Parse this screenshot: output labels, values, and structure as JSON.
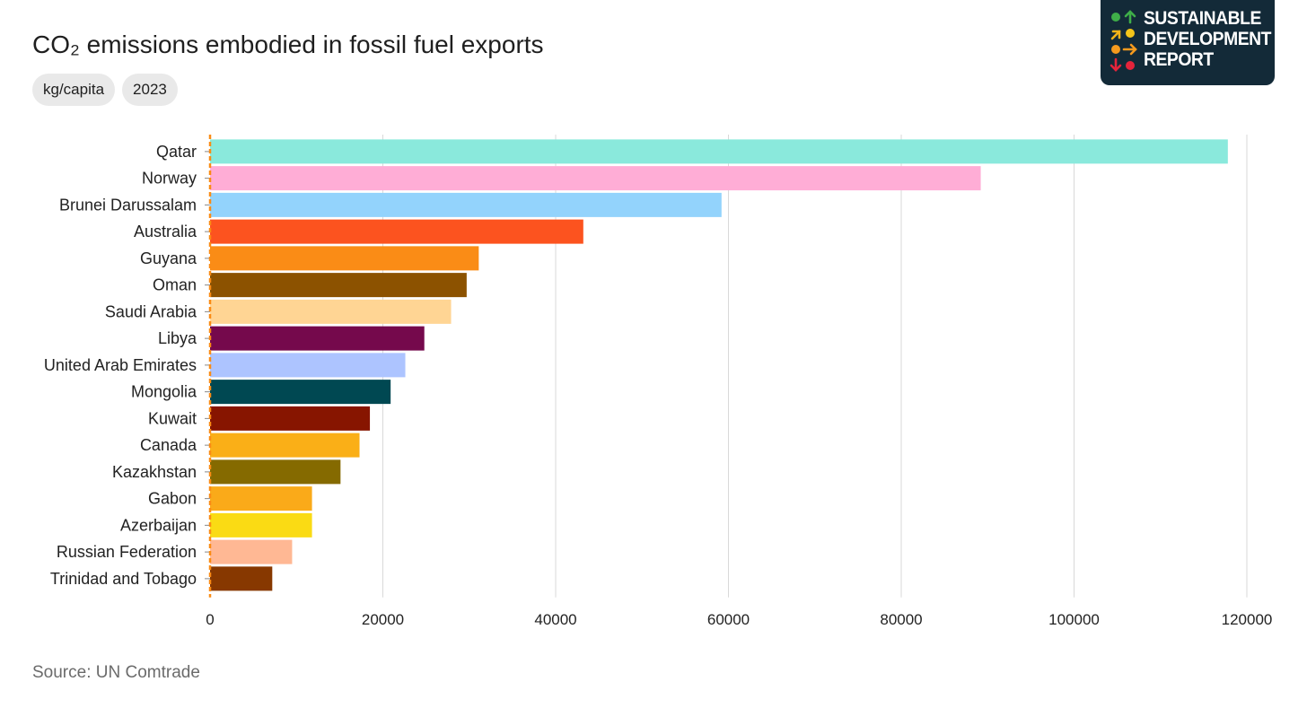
{
  "header": {
    "title": "CO₂ emissions embodied in fossil fuel exports",
    "chips": [
      "kg/capita",
      "2023"
    ]
  },
  "logo": {
    "lines": [
      "SUSTAINABLE",
      "DEVELOPMENT",
      "REPORT"
    ],
    "background": "#132a38",
    "icons": [
      "green-dot",
      "up-arrow-icon",
      "diagonal-arrow-icon",
      "yellow-dot",
      "orange-dot",
      "right-arrow-icon",
      "down-arrow-icon",
      "red-dot"
    ]
  },
  "chart_data": {
    "type": "bar",
    "orientation": "horizontal",
    "title": "CO₂ emissions embodied in fossil fuel exports",
    "xlabel": "",
    "ylabel": "",
    "xlim": [
      0,
      120000
    ],
    "xticks": [
      0,
      20000,
      40000,
      60000,
      80000,
      100000,
      120000
    ],
    "grid": "vertical",
    "categories": [
      "Qatar",
      "Norway",
      "Brunei Darussalam",
      "Australia",
      "Guyana",
      "Oman",
      "Saudi Arabia",
      "Libya",
      "United Arab Emirates",
      "Mongolia",
      "Kuwait",
      "Canada",
      "Kazakhstan",
      "Gabon",
      "Azerbaijan",
      "Russian Federation",
      "Trinidad and Tobago"
    ],
    "values": [
      117800,
      89200,
      59200,
      43200,
      31100,
      29700,
      27900,
      24800,
      22600,
      20900,
      18500,
      17300,
      15100,
      11800,
      11800,
      9500,
      7200
    ],
    "colors": [
      "#8ae9dc",
      "#ffadd6",
      "#93d3fc",
      "#fc531f",
      "#fa8c16",
      "#8c5200",
      "#ffd594",
      "#75094c",
      "#adc4ff",
      "#004852",
      "#871500",
      "#faaf17",
      "#856a00",
      "#faaa19",
      "#fadb14",
      "#ffb894",
      "#873800"
    ],
    "baseline_color": "#fa8c16"
  },
  "footer": {
    "source": "Source: UN Comtrade"
  }
}
